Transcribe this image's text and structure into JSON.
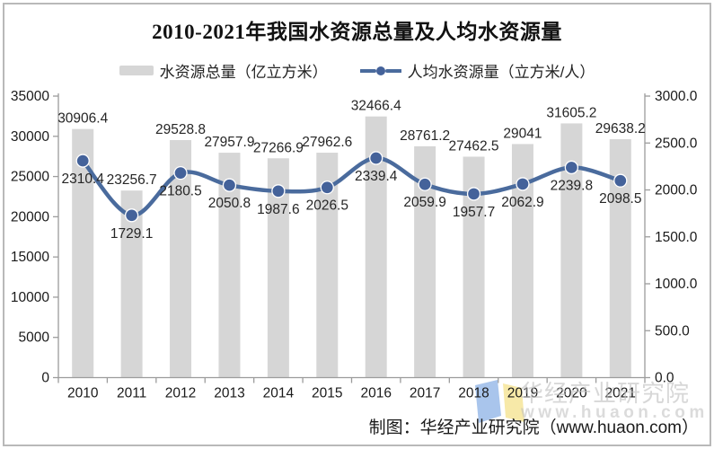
{
  "title": "2010-2021年我国水资源总量及人均水资源量",
  "legend": {
    "bar_label": "水资源总量（亿立方米）",
    "line_label": "人均水资源量（立方米/人）"
  },
  "footer": {
    "credit": "制图：华经产业研究院（www.huaon.com）"
  },
  "watermark": {
    "name": "华经产业研究院",
    "url": "www.huaon.com",
    "logo": "huaon-logo"
  },
  "colors": {
    "bar": "#d6d6d6",
    "line": "#4a6b9d",
    "marker": "#44629a",
    "marker_ring": "#ffffff",
    "axis": "#9c9c9c",
    "tick_text": "#1a1a1a",
    "label_text": "#262626",
    "watermark_text": "#bfbfbf",
    "logo_blue": "#a9c5ec",
    "logo_yellow": "#f7e9a8",
    "border": "#b9b9b9"
  },
  "chart_data": {
    "type": "bar",
    "subtype": "combo bar+line, dual axis",
    "title": "2010-2021年我国水资源总量及人均水资源量",
    "categories": [
      "2010",
      "2011",
      "2012",
      "2013",
      "2014",
      "2015",
      "2016",
      "2017",
      "2018",
      "2019",
      "2020",
      "2021"
    ],
    "series": [
      {
        "name": "水资源总量（亿立方米）",
        "type": "bar",
        "axis": "left",
        "values": [
          30906.4,
          23256.7,
          29528.8,
          27957.9,
          27266.9,
          27962.6,
          32466.4,
          28761.2,
          27462.5,
          29041,
          31605.2,
          29638.2
        ],
        "labels": [
          "30906.4",
          "23256.7",
          "29528.8",
          "27957.9",
          "27266.9",
          "27962.6",
          "32466.4",
          "28761.2",
          "27462.5",
          "29041",
          "31605.2",
          "29638.2"
        ]
      },
      {
        "name": "人均水资源量（立方米/人）",
        "type": "line",
        "axis": "right",
        "values": [
          2310.4,
          1729.1,
          2180.5,
          2050.8,
          1987.6,
          2026.5,
          2339.4,
          2059.9,
          1957.7,
          2062.9,
          2239.8,
          2098.5
        ],
        "labels": [
          "2310.4",
          "1729.1",
          "2180.5",
          "2050.8",
          "1987.6",
          "2026.5",
          "2339.4",
          "2059.9",
          "1957.7",
          "2062.9",
          "2239.8",
          "2098.5"
        ]
      }
    ],
    "left_axis": {
      "min": 0,
      "max": 35000,
      "step": 5000,
      "tick_labels": [
        "0",
        "5000",
        "10000",
        "15000",
        "20000",
        "25000",
        "30000",
        "35000"
      ]
    },
    "right_axis": {
      "min": 0,
      "max": 3000,
      "step": 500,
      "tick_labels": [
        "0.0",
        "500.0",
        "1000.0",
        "1500.0",
        "2000.0",
        "2500.0",
        "3000.0"
      ]
    },
    "grid": false,
    "legend_position": "top"
  }
}
